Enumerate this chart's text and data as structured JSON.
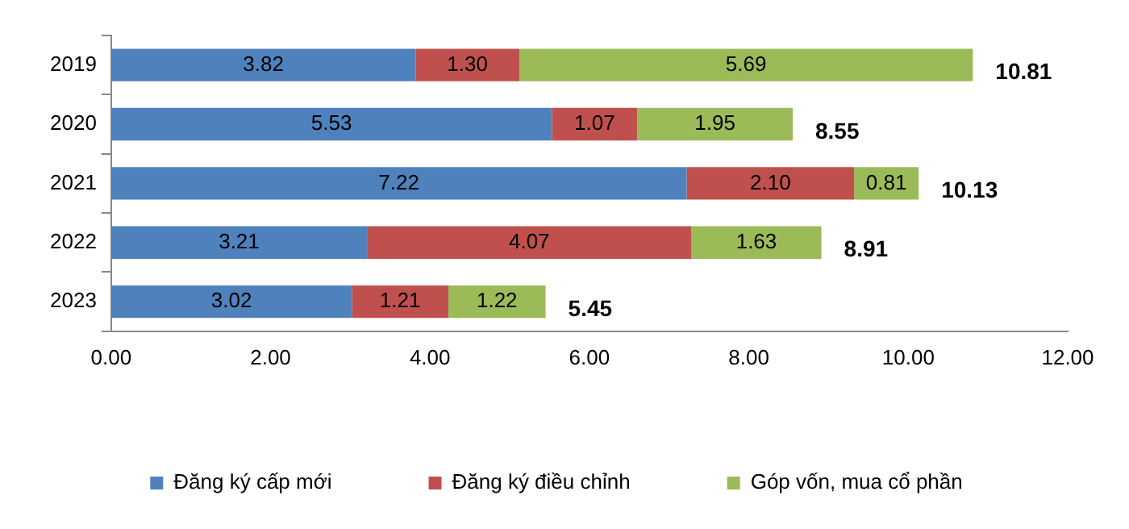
{
  "chart_data": {
    "type": "bar",
    "orientation": "horizontal",
    "stacked": true,
    "categories": [
      "2019",
      "2020",
      "2021",
      "2022",
      "2023"
    ],
    "series": [
      {
        "name": "Đăng ký cấp mới",
        "color": "#4f81bd",
        "values": [
          3.82,
          5.53,
          7.22,
          3.21,
          3.02
        ],
        "value_labels": [
          "3.82",
          "5.53",
          "7.22",
          "3.21",
          "3.02"
        ]
      },
      {
        "name": "Đăng ký điều chỉnh",
        "color": "#c0504d",
        "values": [
          1.3,
          1.07,
          2.1,
          4.07,
          1.21
        ],
        "value_labels": [
          "1.30",
          "1.07",
          "2.10",
          "4.07",
          "1.21"
        ]
      },
      {
        "name": "Góp vốn, mua cổ phần",
        "color": "#9bbb59",
        "values": [
          5.69,
          1.95,
          0.81,
          1.63,
          1.22
        ],
        "value_labels": [
          "5.69",
          "1.95",
          "0.81",
          "1.63",
          "1.22"
        ]
      }
    ],
    "totals": [
      "10.81",
      "8.55",
      "10.13",
      "8.91",
      "5.45"
    ],
    "xlim": [
      0,
      12
    ],
    "xticks": [
      {
        "value": 0,
        "label": "0.00"
      },
      {
        "value": 2,
        "label": "2.00"
      },
      {
        "value": 4,
        "label": "4.00"
      },
      {
        "value": 6,
        "label": "6.00"
      },
      {
        "value": 8,
        "label": "8.00"
      },
      {
        "value": 10,
        "label": "10.00"
      },
      {
        "value": 12,
        "label": "12.00"
      }
    ],
    "grid": false,
    "legend": "bottom"
  }
}
